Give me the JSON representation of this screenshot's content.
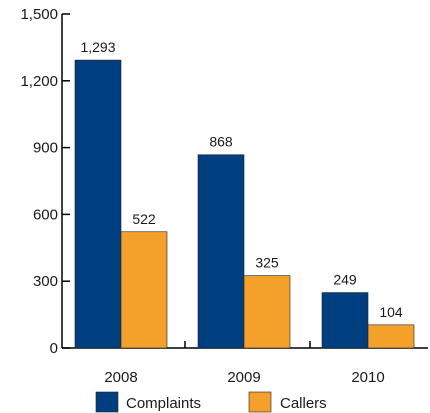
{
  "chart_data": {
    "type": "bar",
    "categories": [
      "2008",
      "2009",
      "2010"
    ],
    "series": [
      {
        "name": "Complaints",
        "values": [
          1293,
          868,
          249
        ],
        "color": "#003f7f"
      },
      {
        "name": "Callers",
        "values": [
          522,
          325,
          104
        ],
        "color": "#f4a12c"
      }
    ],
    "data_labels": [
      [
        "1,293",
        "868",
        "249"
      ],
      [
        "522",
        "325",
        "104"
      ]
    ],
    "yticks": [
      0,
      300,
      600,
      900,
      1200,
      1500
    ],
    "ytick_labels": [
      "0",
      "300",
      "600",
      "900",
      "1,200",
      "1,500"
    ],
    "ylim": [
      0,
      1500
    ],
    "title": "",
    "xlabel": "",
    "ylabel": "",
    "grid": false,
    "legend_position": "bottom"
  }
}
